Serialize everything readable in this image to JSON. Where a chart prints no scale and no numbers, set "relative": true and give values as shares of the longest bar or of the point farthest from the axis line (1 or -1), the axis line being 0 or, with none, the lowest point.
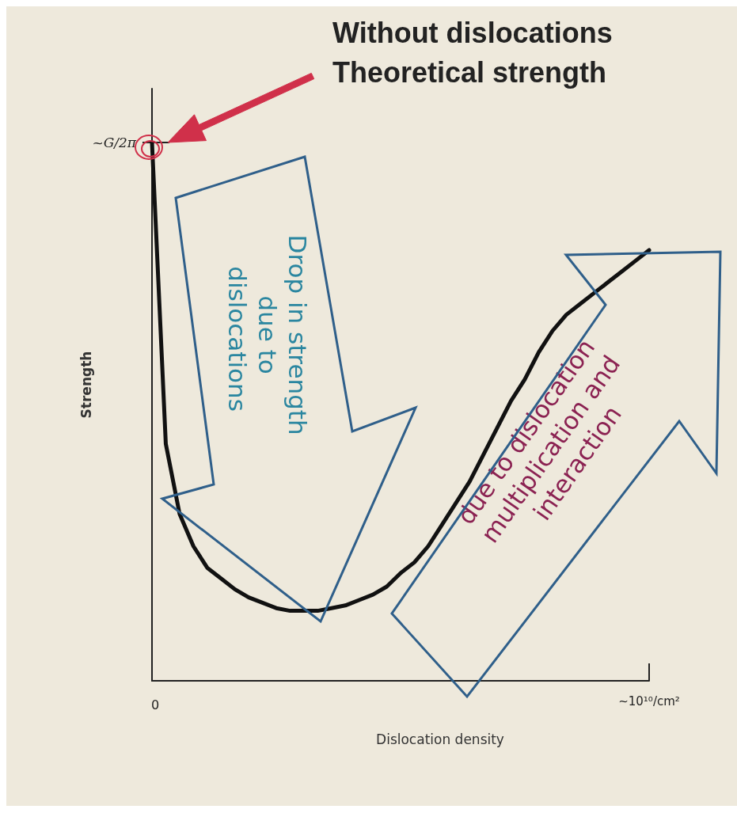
{
  "chart_data": {
    "type": "line",
    "relative": true,
    "xlabel": "Dislocation density",
    "ylabel": "Strength",
    "categories": [
      null,
      null,
      null,
      null,
      null,
      null,
      null,
      null,
      null,
      null,
      null,
      null,
      null,
      null,
      null,
      null,
      null,
      null,
      null,
      null,
      null,
      null,
      null,
      null,
      null,
      null,
      null,
      null,
      null,
      null,
      null,
      null,
      null,
      null,
      null,
      null,
      null
    ],
    "series": [
      {
        "color": "#111111",
        "values": [
          1,
          0.44,
          0.31,
          0.25,
          0.21,
          0.19,
          0.17,
          0.155,
          0.145,
          0.135,
          0.13,
          0.13,
          0.13,
          0.135,
          0.14,
          0.15,
          0.16,
          0.175,
          0.2,
          0.22,
          0.25,
          0.29,
          0.33,
          0.37,
          0.42,
          0.47,
          0.52,
          0.56,
          0.61,
          0.65,
          0.68,
          0.7,
          0.72,
          0.74,
          0.76,
          0.78,
          0.8
        ]
      }
    ],
    "annotations": [
      "Without dislocations\nTheoretical strength",
      "Drop in strength due to dislocations",
      "due to dislocation multiplication and interaction",
      "~G/2π",
      "0",
      "~10¹⁰/cm²"
    ]
  }
}
